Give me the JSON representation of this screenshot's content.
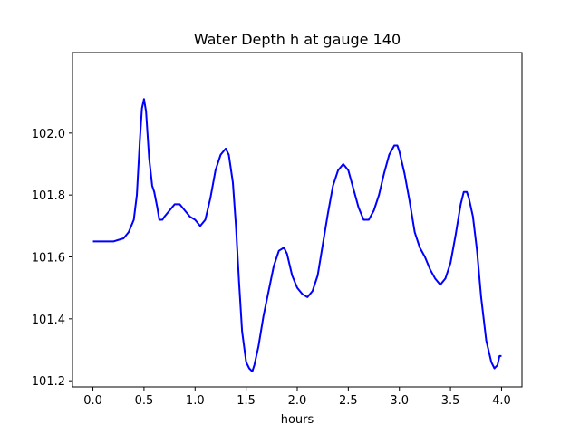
{
  "chart_data": {
    "type": "line",
    "title": "Water Depth h at gauge 140",
    "xlabel": "hours",
    "ylabel": "",
    "xlim": [
      -0.2,
      4.2
    ],
    "ylim": [
      101.18,
      102.26
    ],
    "xticks": [
      0.0,
      0.5,
      1.0,
      1.5,
      2.0,
      2.5,
      3.0,
      3.5,
      4.0
    ],
    "xtick_labels": [
      "0.0",
      "0.5",
      "1.0",
      "1.5",
      "2.0",
      "2.5",
      "3.0",
      "3.5",
      "4.0"
    ],
    "yticks": [
      101.2,
      101.4,
      101.6,
      101.8,
      102.0
    ],
    "ytick_labels": [
      "101.2",
      "101.4",
      "101.6",
      "101.8",
      "102.0"
    ],
    "grid": false,
    "series": [
      {
        "color": "#0000ff",
        "x": [
          0.0,
          0.1,
          0.2,
          0.3,
          0.35,
          0.4,
          0.43,
          0.46,
          0.48,
          0.5,
          0.52,
          0.55,
          0.58,
          0.6,
          0.63,
          0.65,
          0.68,
          0.7,
          0.75,
          0.8,
          0.85,
          0.9,
          0.95,
          1.0,
          1.05,
          1.1,
          1.15,
          1.2,
          1.25,
          1.3,
          1.33,
          1.37,
          1.4,
          1.43,
          1.46,
          1.5,
          1.53,
          1.56,
          1.58,
          1.62,
          1.67,
          1.72,
          1.77,
          1.82,
          1.87,
          1.9,
          1.95,
          2.0,
          2.05,
          2.1,
          2.15,
          2.2,
          2.25,
          2.3,
          2.35,
          2.4,
          2.45,
          2.5,
          2.55,
          2.6,
          2.65,
          2.7,
          2.75,
          2.8,
          2.85,
          2.9,
          2.95,
          2.98,
          3.0,
          3.05,
          3.1,
          3.15,
          3.2,
          3.25,
          3.3,
          3.35,
          3.4,
          3.45,
          3.5,
          3.55,
          3.6,
          3.63,
          3.66,
          3.68,
          3.72,
          3.76,
          3.8,
          3.85,
          3.9,
          3.93,
          3.96,
          3.98,
          4.0
        ],
        "y": [
          101.65,
          101.65,
          101.65,
          101.66,
          101.68,
          101.72,
          101.8,
          101.98,
          102.08,
          102.11,
          102.07,
          101.92,
          101.83,
          101.81,
          101.76,
          101.72,
          101.72,
          101.73,
          101.75,
          101.77,
          101.77,
          101.75,
          101.73,
          101.72,
          101.7,
          101.72,
          101.79,
          101.88,
          101.93,
          101.95,
          101.93,
          101.84,
          101.7,
          101.52,
          101.36,
          101.26,
          101.24,
          101.23,
          101.25,
          101.31,
          101.41,
          101.49,
          101.57,
          101.62,
          101.63,
          101.61,
          101.54,
          101.5,
          101.48,
          101.47,
          101.49,
          101.54,
          101.64,
          101.74,
          101.83,
          101.88,
          101.9,
          101.88,
          101.82,
          101.76,
          101.72,
          101.72,
          101.75,
          101.8,
          101.87,
          101.93,
          101.96,
          101.96,
          101.94,
          101.87,
          101.78,
          101.68,
          101.63,
          101.6,
          101.56,
          101.53,
          101.51,
          101.53,
          101.58,
          101.67,
          101.77,
          101.81,
          101.81,
          101.79,
          101.73,
          101.62,
          101.47,
          101.33,
          101.26,
          101.24,
          101.25,
          101.28,
          101.28
        ]
      }
    ]
  }
}
